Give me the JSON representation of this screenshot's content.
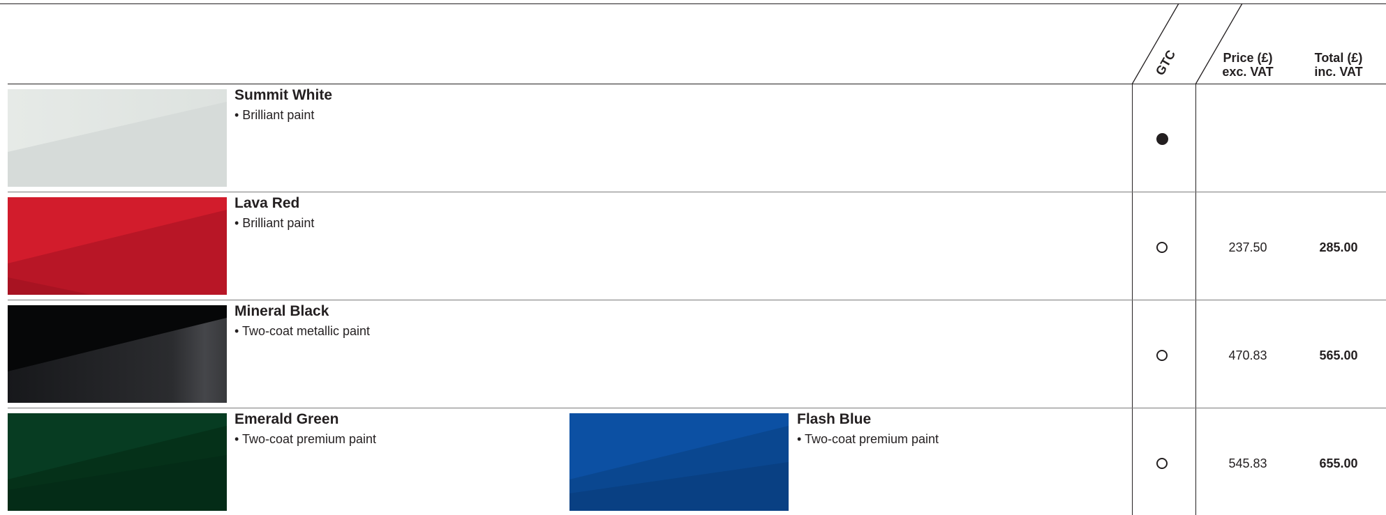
{
  "header": {
    "gtc": "GTC",
    "price_line1": "Price (£)",
    "price_line2": "exc. VAT",
    "total_line1": "Total (£)",
    "total_line2": "inc. VAT"
  },
  "rows": [
    {
      "name": "Summit White",
      "desc": "• Brilliant paint",
      "gtc": "standard",
      "price": "",
      "total": "",
      "swatch_color": "#e1e5e2"
    },
    {
      "name": "Lava Red",
      "desc": "• Brilliant paint",
      "gtc": "option",
      "price": "237.50",
      "total": "285.00",
      "swatch_color": "#c8182b"
    },
    {
      "name": "Mineral Black",
      "desc": "• Two-coat metallic paint",
      "gtc": "option",
      "price": "470.83",
      "total": "565.00",
      "swatch_color": "#121315"
    },
    {
      "name": "Emerald Green",
      "desc": "• Two-coat premium paint",
      "gtc": "option",
      "price": "545.83",
      "total": "655.00",
      "swatch_color": "#083b22",
      "second": {
        "name": "Flash Blue",
        "desc": "• Two-coat premium paint",
        "swatch_color": "#0a4c9b"
      }
    }
  ]
}
